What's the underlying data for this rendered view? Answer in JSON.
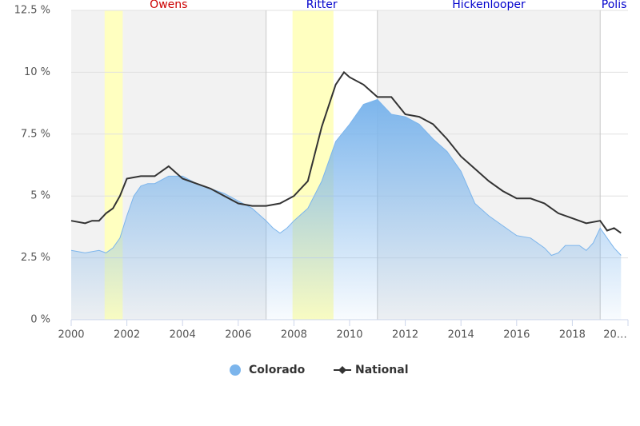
{
  "chart_data": {
    "type": "area-line",
    "xlim": [
      2000,
      2020
    ],
    "xticks": [
      2000,
      2002,
      2004,
      2006,
      2008,
      2010,
      2012,
      2014,
      2016,
      2018,
      {
        "value": 2020,
        "label": "20…"
      }
    ],
    "ylim": [
      0,
      12.5
    ],
    "yticks": [
      {
        "value": 0,
        "label": "0 %"
      },
      {
        "value": 2.5,
        "label": "2.5 %"
      },
      {
        "value": 5,
        "label": "5 %"
      },
      {
        "value": 7.5,
        "label": "7.5 %"
      },
      {
        "value": 10,
        "label": "10 %"
      },
      {
        "value": 12.5,
        "label": "12.5 %"
      }
    ],
    "grid": true,
    "legend": "bottom",
    "terms": [
      {
        "name": "Owens",
        "from": 2000,
        "to": 2007,
        "color": "#cc0000",
        "background": "#f2f2f2"
      },
      {
        "name": "Ritter",
        "from": 2007,
        "to": 2011,
        "color": "#0000cc",
        "background": "#ffffff"
      },
      {
        "name": "Hickenlooper",
        "from": 2011,
        "to": 2019,
        "color": "#0000cc",
        "background": "#f2f2f2"
      },
      {
        "name": "Polis",
        "from": 2019,
        "to": 2020,
        "color": "#0000cc",
        "background": "#ffffff"
      }
    ],
    "recessions": {
      "color": "#ffffc0",
      "ranges": [
        [
          2001.2,
          2001.85
        ],
        [
          2007.95,
          2009.42
        ]
      ]
    },
    "series": [
      {
        "name": "Colorado",
        "color": "#7cb5ec",
        "x": [
          2000,
          2000.5,
          2001,
          2001.25,
          2001.5,
          2001.75,
          2002,
          2002.25,
          2002.5,
          2002.75,
          2003,
          2003.5,
          2004,
          2004.5,
          2005,
          2005.5,
          2006,
          2006.5,
          2007,
          2007.25,
          2007.5,
          2007.75,
          2008,
          2008.5,
          2009,
          2009.5,
          2010,
          2010.5,
          2011,
          2011.5,
          2012,
          2012.5,
          2013,
          2013.5,
          2014,
          2014.5,
          2015,
          2015.5,
          2016,
          2016.5,
          2017,
          2017.25,
          2017.5,
          2017.75,
          2018,
          2018.25,
          2018.5,
          2018.75,
          2019,
          2019.25,
          2019.5,
          2019.75
        ],
        "values": [
          2.8,
          2.7,
          2.8,
          2.7,
          2.9,
          3.3,
          4.2,
          5.0,
          5.4,
          5.5,
          5.5,
          5.8,
          5.8,
          5.5,
          5.3,
          5.1,
          4.8,
          4.5,
          4.0,
          3.7,
          3.5,
          3.7,
          4.0,
          4.5,
          5.6,
          7.2,
          7.9,
          8.7,
          8.9,
          8.3,
          8.2,
          7.9,
          7.3,
          6.8,
          6.0,
          4.7,
          4.2,
          3.8,
          3.4,
          3.3,
          2.9,
          2.6,
          2.7,
          3.0,
          3.0,
          3.0,
          2.8,
          3.1,
          3.7,
          3.3,
          2.9,
          2.6
        ]
      },
      {
        "name": "National",
        "color": "#333333",
        "x": [
          2000,
          2000.5,
          2000.75,
          2001,
          2001.25,
          2001.5,
          2001.75,
          2002,
          2002.5,
          2003,
          2003.25,
          2003.5,
          2004,
          2004.5,
          2005,
          2005.5,
          2006,
          2006.5,
          2007,
          2007.5,
          2008,
          2008.5,
          2009,
          2009.5,
          2009.8,
          2010,
          2010.5,
          2011,
          2011.5,
          2012,
          2012.5,
          2013,
          2013.5,
          2014,
          2014.5,
          2015,
          2015.5,
          2016,
          2016.5,
          2017,
          2017.5,
          2018,
          2018.5,
          2019,
          2019.25,
          2019.5,
          2019.75
        ],
        "values": [
          4.0,
          3.9,
          4.0,
          4.0,
          4.3,
          4.5,
          5.0,
          5.7,
          5.8,
          5.8,
          6.0,
          6.2,
          5.7,
          5.5,
          5.3,
          5.0,
          4.7,
          4.6,
          4.6,
          4.7,
          5.0,
          5.6,
          7.8,
          9.5,
          10.0,
          9.8,
          9.5,
          9.0,
          9.0,
          8.3,
          8.2,
          7.9,
          7.3,
          6.6,
          6.1,
          5.6,
          5.2,
          4.9,
          4.9,
          4.7,
          4.3,
          4.1,
          3.9,
          4.0,
          3.6,
          3.7,
          3.5
        ]
      }
    ]
  }
}
